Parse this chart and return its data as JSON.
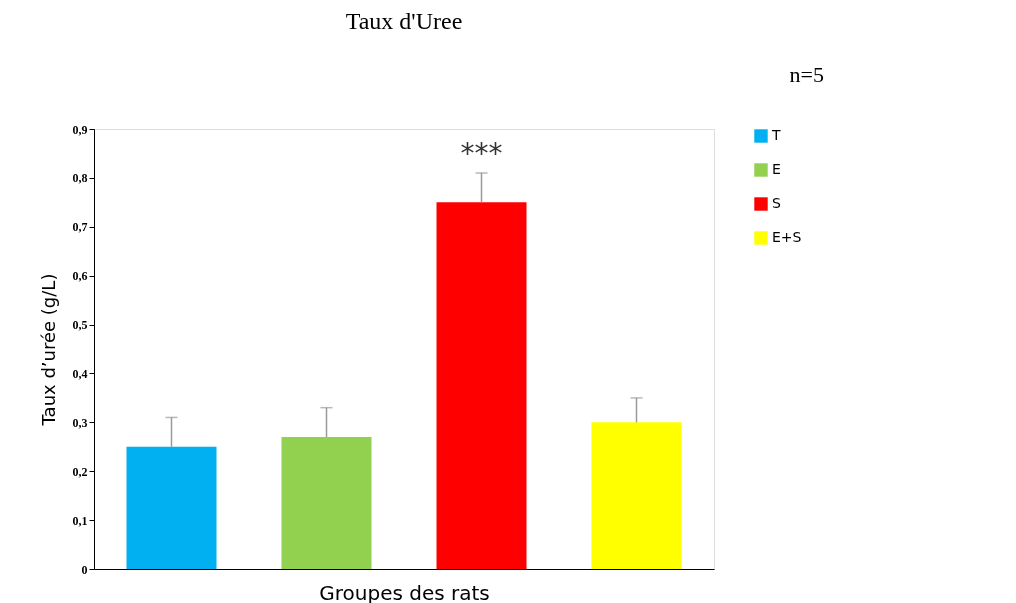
{
  "chart_data": {
    "type": "bar",
    "title": "Taux d'Uree",
    "xlabel": "Groupes des rats",
    "ylabel": "Taux d’urée (g/L)",
    "categories": [
      null,
      null,
      null,
      null
    ],
    "series": [
      {
        "name": "T",
        "color": "#00b0f0",
        "values": [
          0.25,
          null,
          null,
          null
        ],
        "errors": [
          [
            0.25,
            0.31
          ],
          null,
          null,
          null
        ]
      },
      {
        "name": "E",
        "color": "#92d050",
        "values": [
          null,
          0.27,
          null,
          null
        ],
        "errors": [
          null,
          [
            0.27,
            0.33
          ],
          null,
          null
        ]
      },
      {
        "name": "S",
        "color": "#ff0000",
        "values": [
          null,
          null,
          0.75,
          null
        ],
        "errors": [
          null,
          null,
          [
            0.75,
            0.81
          ],
          null
        ]
      },
      {
        "name": "E+S",
        "color": "#ffff00",
        "values": [
          null,
          null,
          null,
          0.3
        ],
        "errors": [
          null,
          null,
          null,
          [
            0.3,
            0.35
          ]
        ]
      }
    ],
    "ylim": [
      0,
      0.9
    ],
    "yticks": [
      {
        "value": 0,
        "label": "0"
      },
      {
        "value": 0.1,
        "label": "0,1"
      },
      {
        "value": 0.2,
        "label": "0,2"
      },
      {
        "value": 0.3,
        "label": "0,3"
      },
      {
        "value": 0.4,
        "label": "0,4"
      },
      {
        "value": 0.5,
        "label": "0,5"
      },
      {
        "value": 0.6,
        "label": "0,6"
      },
      {
        "value": 0.7,
        "label": "0,7"
      },
      {
        "value": 0.8,
        "label": "0,8"
      },
      {
        "value": 0.9,
        "label": "0,9"
      }
    ],
    "annotations": [
      "***",
      "n=5"
    ],
    "legend": "right",
    "tick_labels": "y",
    "grid": false
  }
}
